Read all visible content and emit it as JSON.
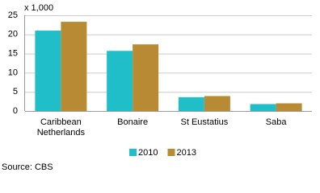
{
  "chart_data": {
    "type": "bar",
    "unit_label": "x 1,000",
    "categories": [
      "Caribbean Netherlands",
      "Bonaire",
      "St Eustatius",
      "Saba"
    ],
    "series": [
      {
        "name": "2010",
        "color": "#1fbec9",
        "values": [
          21.0,
          15.7,
          3.6,
          1.8
        ]
      },
      {
        "name": "2013",
        "color": "#b98a34",
        "values": [
          23.3,
          17.4,
          3.9,
          2.0
        ]
      }
    ],
    "ylim": [
      0,
      25
    ],
    "yticks": [
      0,
      5,
      10,
      15,
      20,
      25
    ],
    "grid": true,
    "source": "Source: CBS"
  }
}
